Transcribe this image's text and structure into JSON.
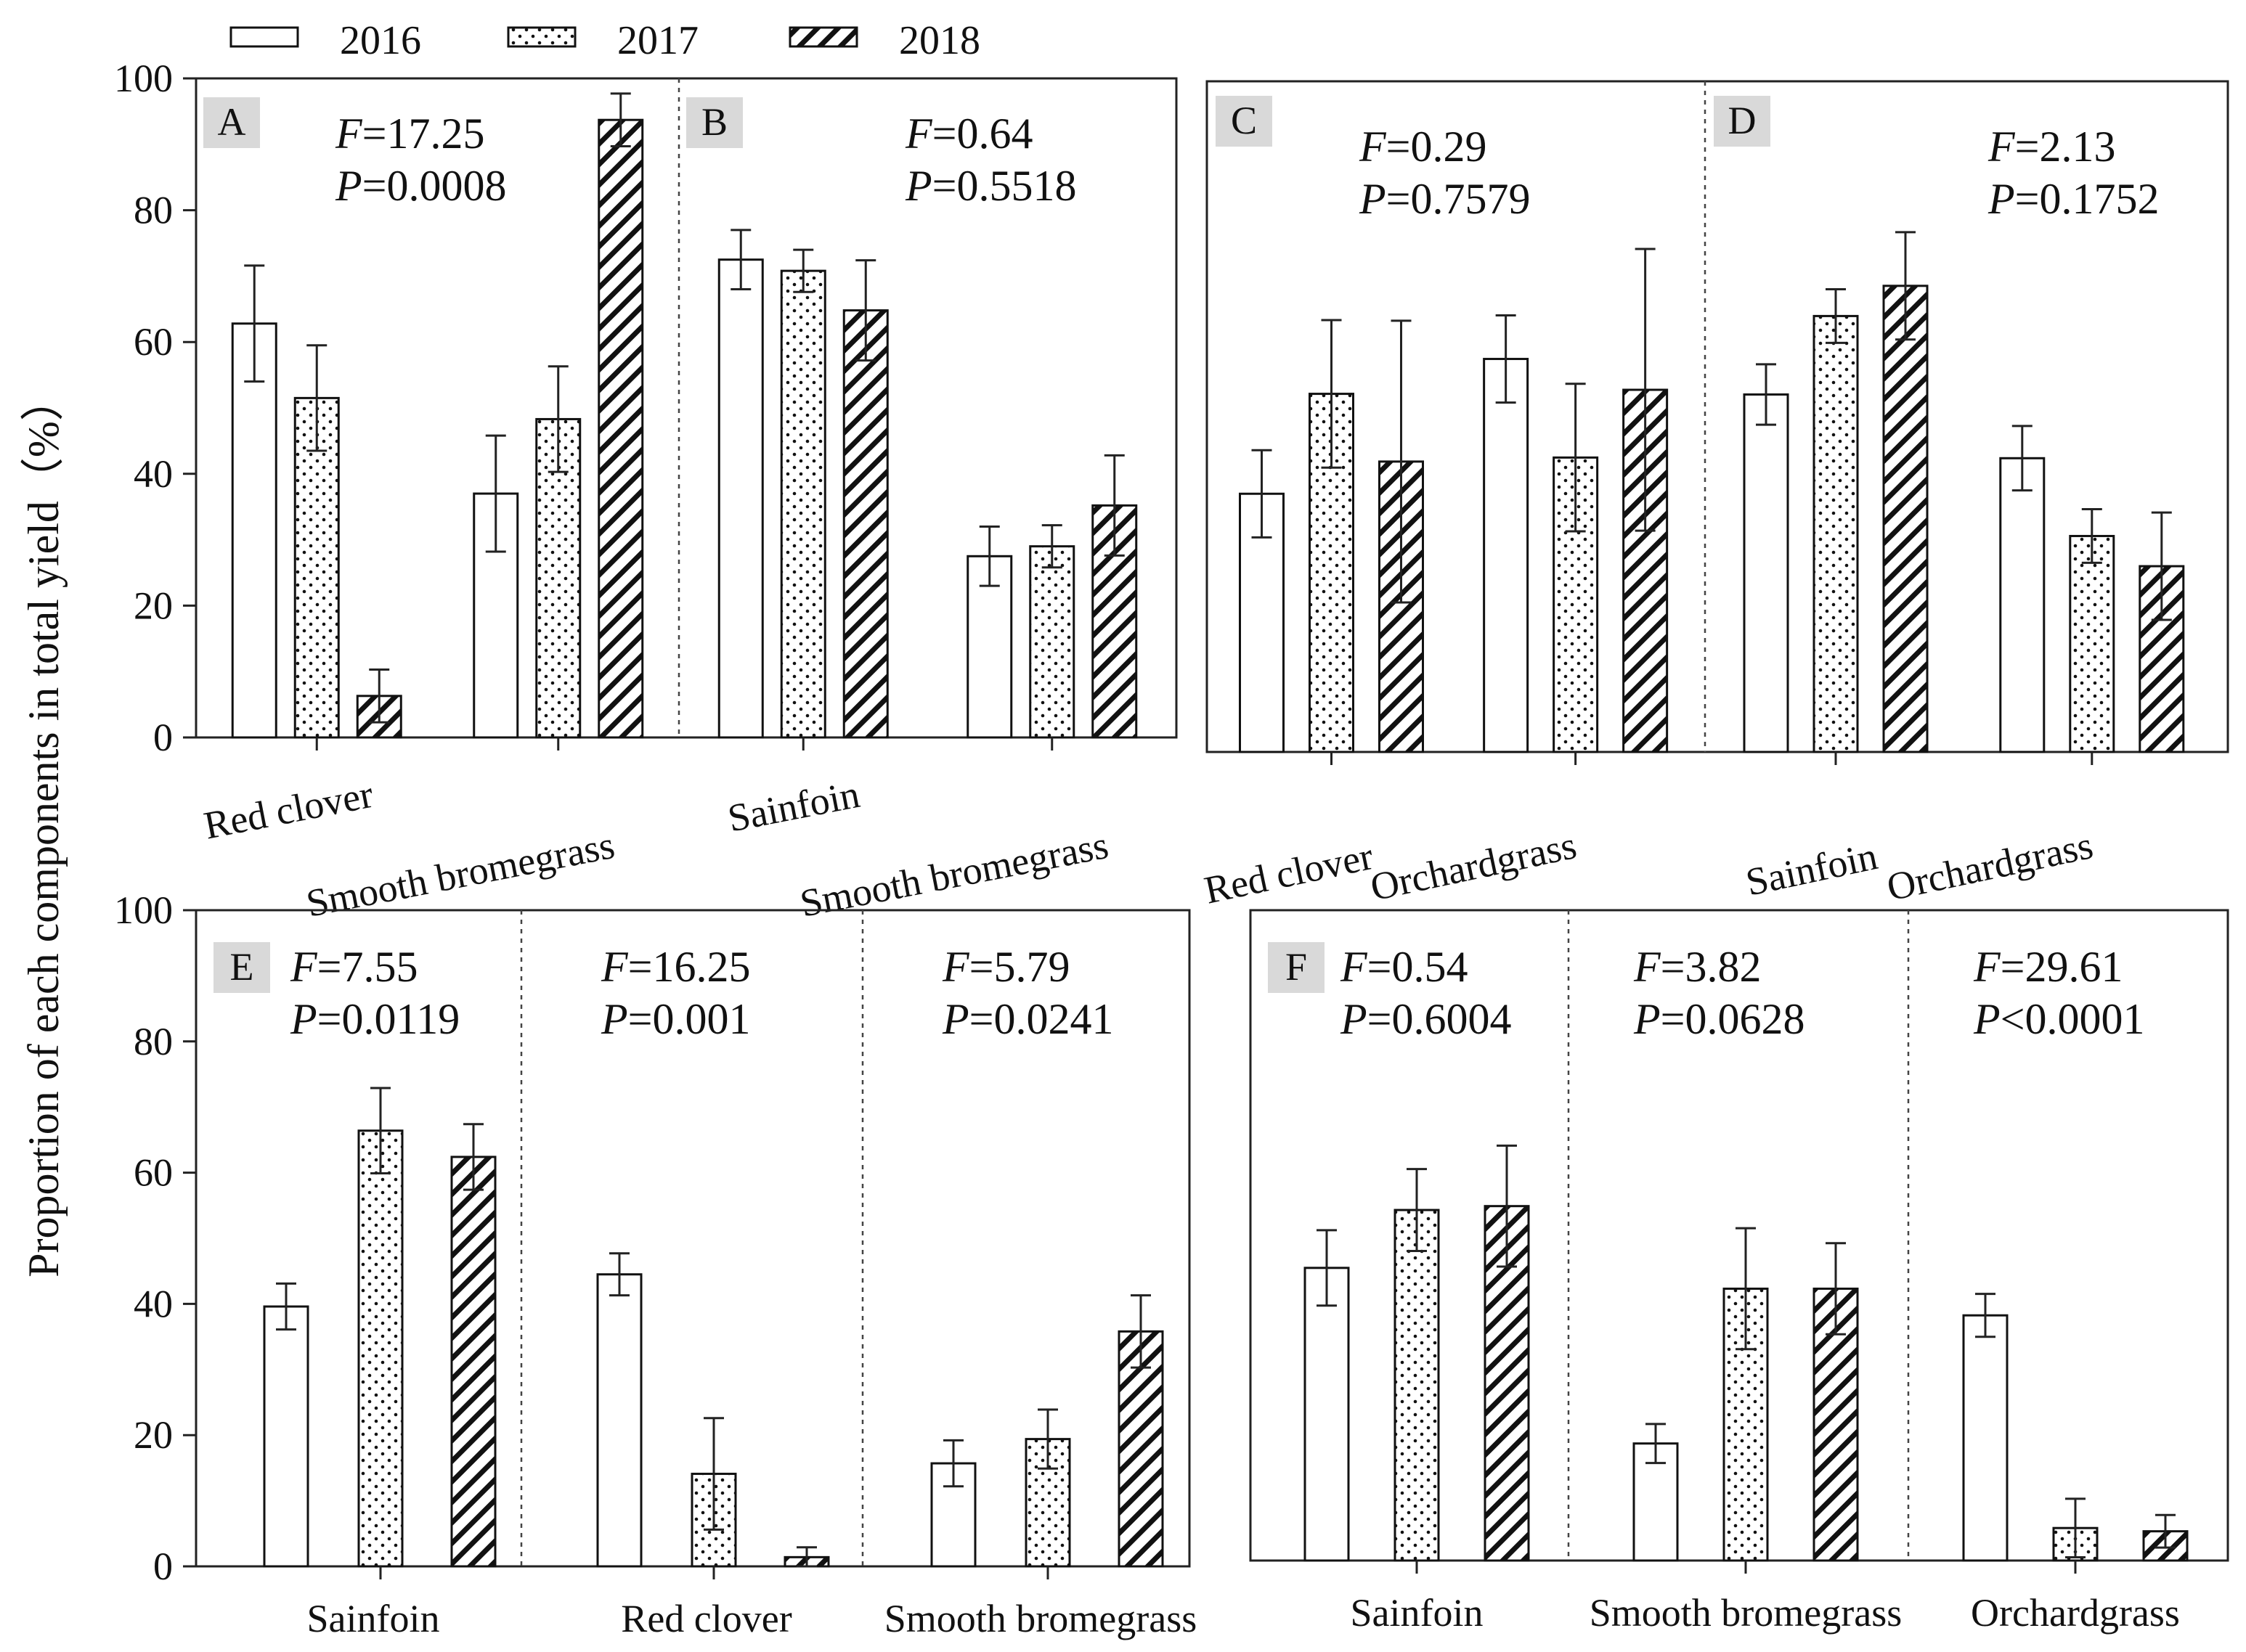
{
  "chart_data": [
    {
      "panels": [
        {
          "letter": "A",
          "F": "17.25",
          "P": "=0.0008",
          "categories": [
            "Red clover",
            "Smooth bromegrass"
          ],
          "series": [
            {
              "name": "2016",
              "values": [
                62.8,
                37.0
              ],
              "err": [
                8.8,
                8.8
              ]
            },
            {
              "name": "2017",
              "values": [
                51.5,
                48.3
              ],
              "err": [
                8.0,
                8.0
              ]
            },
            {
              "name": "2018",
              "values": [
                6.3,
                93.7
              ],
              "err": [
                4.0,
                4.0
              ]
            }
          ]
        },
        {
          "letter": "B",
          "F": "0.64",
          "P": "=0.5518",
          "categories": [
            "Sainfoin",
            "Smooth bromegrass"
          ],
          "series": [
            {
              "name": "2016",
              "values": [
                72.5,
                27.5
              ],
              "err": [
                4.5,
                4.5
              ]
            },
            {
              "name": "2017",
              "values": [
                70.8,
                29.0
              ],
              "err": [
                3.2,
                3.2
              ]
            },
            {
              "name": "2018",
              "values": [
                64.8,
                35.2
              ],
              "err": [
                7.6,
                7.6
              ]
            }
          ]
        }
      ],
      "ylim": [
        0,
        100
      ],
      "yticks": [
        0,
        20,
        40,
        60,
        80,
        100
      ]
    },
    {
      "panels": [
        {
          "letter": "C",
          "F": "0.29",
          "P": "=0.7579",
          "categories": [
            "Red clover",
            "Orchardgrass"
          ],
          "series": [
            {
              "name": "2016",
              "values": [
                38.5,
                58.6
              ],
              "err": [
                6.5,
                6.5
              ]
            },
            {
              "name": "2017",
              "values": [
                53.4,
                43.9
              ],
              "err": [
                11.0,
                11.0
              ]
            },
            {
              "name": "2018",
              "values": [
                43.3,
                54.0
              ],
              "err": [
                21.0,
                21.0
              ]
            }
          ]
        },
        {
          "letter": "D",
          "F": "2.13",
          "P": "=0.1752",
          "categories": [
            "Sainfoin",
            "Orchardgrass"
          ],
          "series": [
            {
              "name": "2016",
              "values": [
                53.3,
                43.8
              ],
              "err": [
                4.5,
                4.8
              ]
            },
            {
              "name": "2017",
              "values": [
                65.0,
                32.2
              ],
              "err": [
                4.0,
                4.0
              ]
            },
            {
              "name": "2018",
              "values": [
                69.5,
                27.7
              ],
              "err": [
                8.0,
                8.0
              ]
            }
          ]
        }
      ],
      "ylim": [
        0,
        100
      ]
    },
    {
      "panels": [
        {
          "letter": "E",
          "groups": [
            {
              "category": "Sainfoin",
              "F": "7.55",
              "P": "=0.0119",
              "values": [
                39.6,
                66.4,
                62.4
              ],
              "err": [
                3.5,
                6.5,
                5.0
              ]
            },
            {
              "category": "Red clover",
              "F": "16.25",
              "P": "=0.001",
              "values": [
                44.5,
                14.1,
                1.4
              ],
              "err": [
                3.2,
                8.5,
                1.5
              ]
            },
            {
              "category": "Smooth bromegrass",
              "F": "5.79",
              "P": "=0.0241",
              "values": [
                15.7,
                19.4,
                35.8
              ],
              "err": [
                3.5,
                4.5,
                5.5
              ]
            }
          ]
        }
      ],
      "ylim": [
        0,
        100
      ],
      "yticks": [
        0,
        20,
        40,
        60,
        80,
        100
      ]
    },
    {
      "panels": [
        {
          "letter": "F",
          "groups": [
            {
              "category": "Sainfoin",
              "F": "0.54",
              "P": "=0.6004",
              "values": [
                45.0,
                53.9,
                54.5
              ],
              "err": [
                5.8,
                6.3,
                9.3
              ]
            },
            {
              "category": "Smooth bromegrass",
              "F": "3.82",
              "P": "=0.0628",
              "values": [
                18.0,
                41.8,
                41.8
              ],
              "err": [
                3.0,
                9.3,
                7.0
              ]
            },
            {
              "category": "Orchardgrass",
              "F": "29.61",
              "P": "<0.0001",
              "values": [
                37.7,
                5.0,
                4.5
              ],
              "err": [
                3.3,
                4.5,
                2.5
              ]
            }
          ]
        }
      ],
      "ylim": [
        0,
        100
      ]
    }
  ],
  "legend": [
    "2016",
    "2017",
    "2018"
  ],
  "ylabel": "Proportion of each components in total yield（%）",
  "stat_labels": {
    "f": "F",
    "p": "P",
    "eq": "="
  },
  "fill_colors": {
    "outline": "#111111",
    "background": "#ffffff"
  }
}
